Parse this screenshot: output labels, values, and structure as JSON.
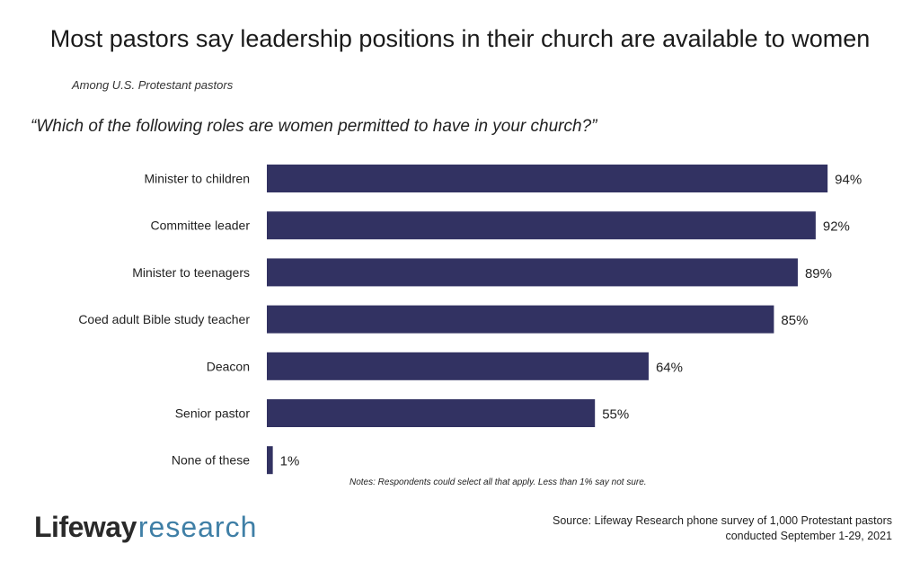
{
  "header": {
    "title": "Most pastors say leadership positions in their church are available to women",
    "subtitle": "Among U.S. Protestant pastors",
    "question": "“Which of the following roles are women permitted to have in your church?”"
  },
  "chart_data": {
    "type": "bar",
    "orientation": "horizontal",
    "categories": [
      "Minister to children",
      "Committee leader",
      "Minister to teenagers",
      "Coed adult Bible study teacher",
      "Deacon",
      "Senior pastor",
      "None of these"
    ],
    "values": [
      94,
      92,
      89,
      85,
      64,
      55,
      1
    ],
    "value_labels": [
      "94%",
      "92%",
      "89%",
      "85%",
      "64%",
      "55%",
      "1%"
    ],
    "unit": "%",
    "xlim": [
      0,
      100
    ],
    "grid": false,
    "bar_color": "#323262"
  },
  "notes": "Notes: Respondents could select all that apply. Less than 1% say not sure.",
  "footer": {
    "logo_brand": "Lifeway",
    "logo_sub": "research",
    "source_line1": "Source: Lifeway Research phone survey of 1,000 Protestant pastors",
    "source_line2": "conducted September 1-29, 2021"
  },
  "colors": {
    "bar": "#323262",
    "logo_accent": "#3f7fa6"
  }
}
